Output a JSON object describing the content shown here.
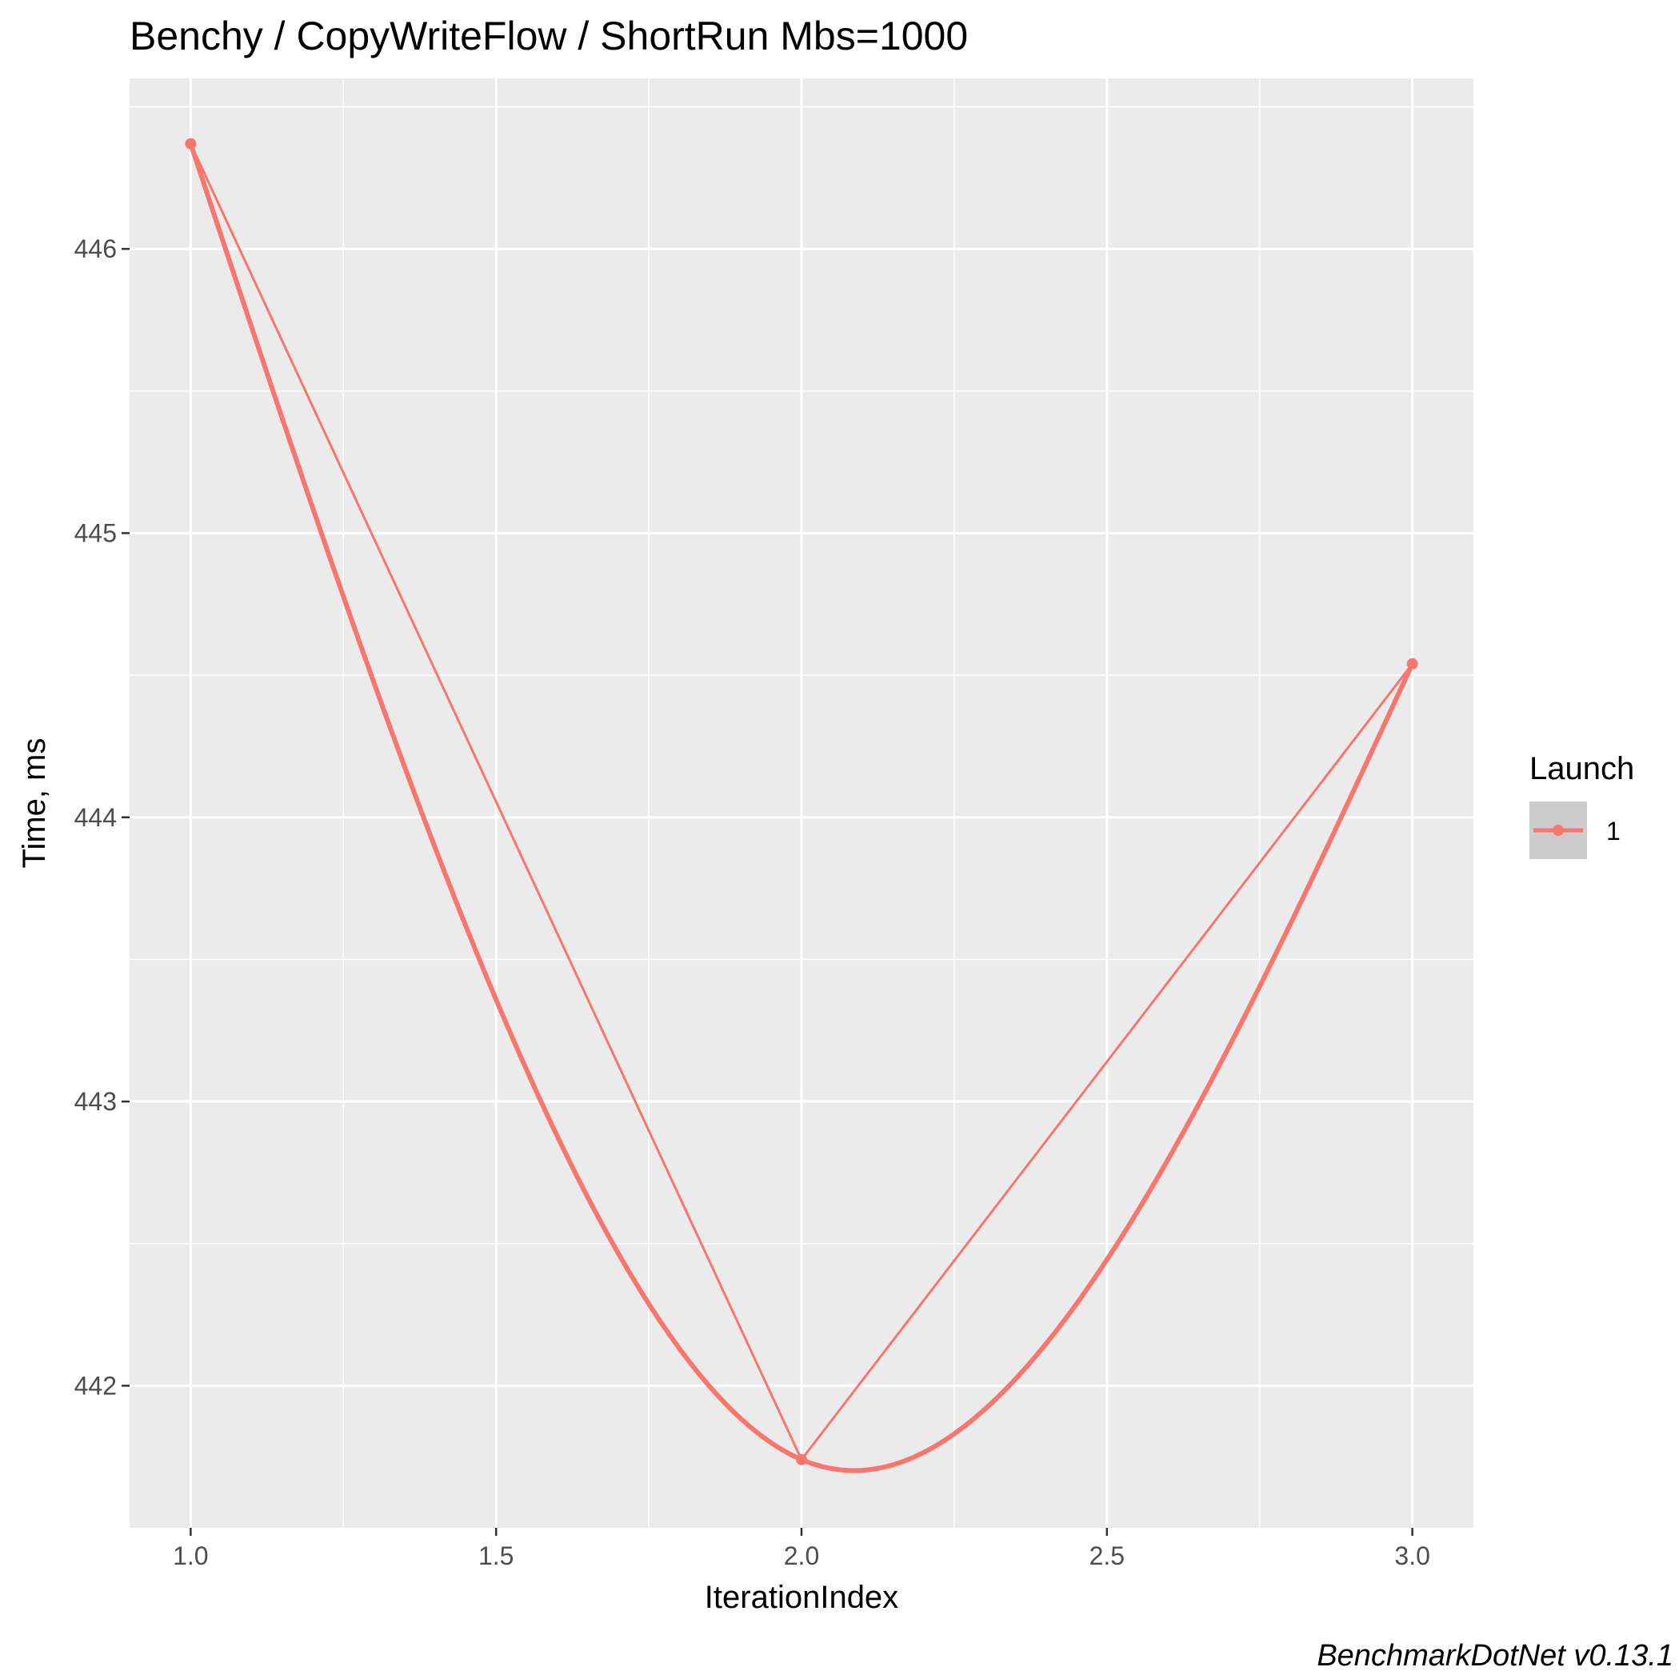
{
  "chart_data": {
    "type": "line",
    "title": "Benchy / CopyWriteFlow / ShortRun Mbs=1000",
    "xlabel": "IterationIndex",
    "ylabel": "Time, ms",
    "caption": "BenchmarkDotNet v0.13.1",
    "x_ticks": [
      "1.0",
      "1.5",
      "2.0",
      "2.5",
      "3.0"
    ],
    "y_ticks": [
      "442",
      "443",
      "444",
      "445",
      "446"
    ],
    "xlim": [
      0.9,
      3.1
    ],
    "ylim": [
      441.5,
      446.6
    ],
    "grid": true,
    "legend": {
      "title": "Launch",
      "position": "right",
      "entries": [
        "1"
      ]
    },
    "series": [
      {
        "name": "1",
        "x": [
          1,
          2,
          3
        ],
        "y": [
          446.37,
          441.74,
          444.54
        ],
        "color": "#f8766d"
      }
    ]
  }
}
